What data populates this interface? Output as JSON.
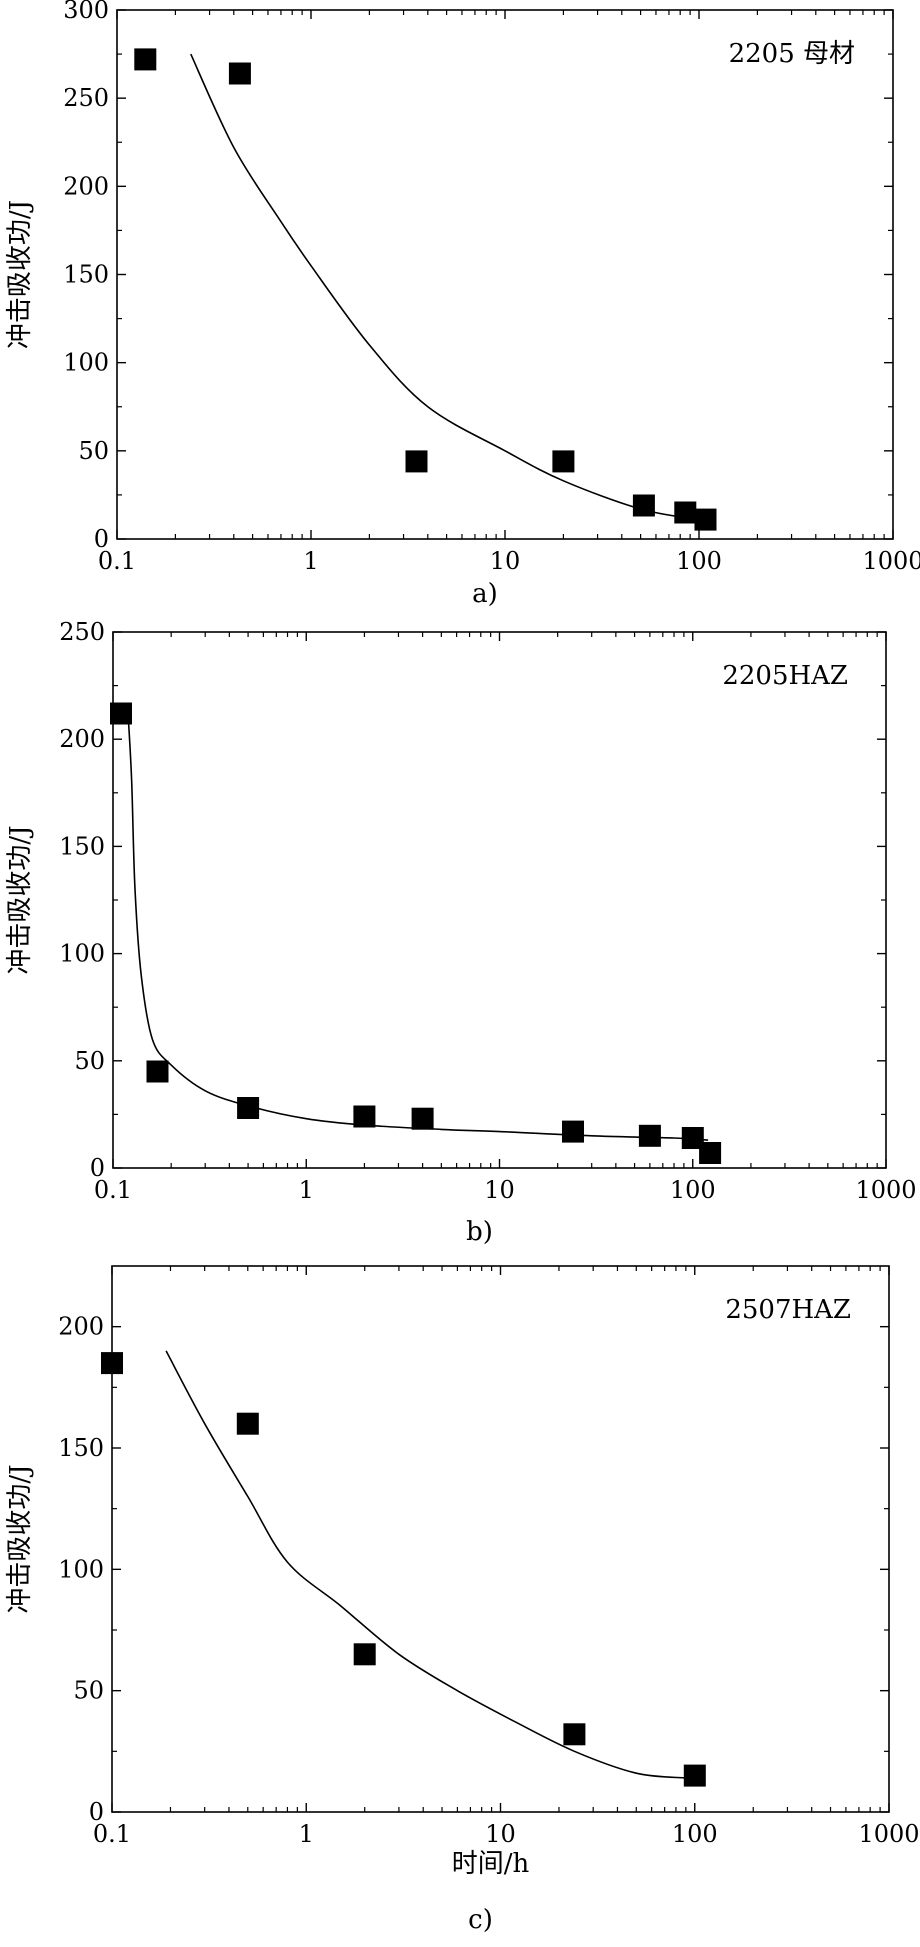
{
  "chart_data": [
    {
      "type": "scatter",
      "panel": "a)",
      "title": "",
      "annotation": "2205 母材",
      "xlabel": "",
      "ylabel": "冲击吸收功/J",
      "xscale": "log",
      "xlim": [
        0.1,
        1000
      ],
      "ylim": [
        0,
        300
      ],
      "xticks": [
        0.1,
        1,
        10,
        100,
        1000
      ],
      "xtick_labels": [
        "0.1",
        "1",
        "10",
        "100",
        "1000"
      ],
      "yticks": [
        0,
        50,
        100,
        150,
        200,
        250,
        300
      ],
      "ytick_labels": [
        "0",
        "50",
        "100",
        "150",
        "200",
        "250",
        "300"
      ],
      "grid": false,
      "series": [
        {
          "kind": "points",
          "marker": "filled-square",
          "x": [
            0.14,
            0.43,
            3.5,
            20,
            52,
            85,
            108
          ],
          "y": [
            272,
            264,
            44,
            44,
            19,
            15,
            11
          ]
        },
        {
          "kind": "fit-curve",
          "x": [
            0.24,
            0.4,
            0.7,
            1,
            2,
            4,
            10,
            20,
            50,
            100
          ],
          "y": [
            275,
            222,
            180,
            155,
            110,
            75,
            50,
            33,
            17,
            11
          ]
        }
      ]
    },
    {
      "type": "scatter",
      "panel": "b)",
      "title": "",
      "annotation": "2205HAZ",
      "xlabel": "",
      "ylabel": "冲击吸收功/J",
      "xscale": "log",
      "xlim": [
        0.1,
        1000
      ],
      "ylim": [
        0,
        250
      ],
      "xticks": [
        0.1,
        1,
        10,
        100,
        1000
      ],
      "xtick_labels": [
        "0.1",
        "1",
        "10",
        "100",
        "1000"
      ],
      "yticks": [
        0,
        50,
        100,
        150,
        200,
        250
      ],
      "ytick_labels": [
        "0",
        "50",
        "100",
        "150",
        "200",
        "250"
      ],
      "grid": false,
      "series": [
        {
          "kind": "points",
          "marker": "filled-square",
          "x": [
            0.11,
            0.17,
            0.5,
            2,
            4,
            24,
            60,
            100,
            123
          ],
          "y": [
            212,
            45,
            28,
            24,
            23,
            17,
            15,
            14,
            7
          ]
        },
        {
          "kind": "fit-curve",
          "x": [
            0.12,
            0.125,
            0.13,
            0.14,
            0.16,
            0.2,
            0.3,
            0.5,
            1,
            2,
            5,
            10,
            30,
            80,
            120
          ],
          "y": [
            210,
            180,
            130,
            90,
            60,
            48,
            36,
            29,
            23,
            20,
            18,
            17,
            15,
            14,
            13
          ]
        }
      ]
    },
    {
      "type": "scatter",
      "panel": "c)",
      "title": "",
      "annotation": "2507HAZ",
      "xlabel": "时间/h",
      "ylabel": "冲击吸收功/J",
      "xscale": "log",
      "xlim": [
        0.1,
        1000
      ],
      "ylim": [
        0,
        225
      ],
      "xticks": [
        0.1,
        1,
        10,
        100,
        1000
      ],
      "xtick_labels": [
        "0.1",
        "1",
        "10",
        "100",
        "1000"
      ],
      "yticks": [
        0,
        50,
        100,
        150,
        200
      ],
      "ytick_labels": [
        "0",
        "50",
        "100",
        "150",
        "200"
      ],
      "grid": false,
      "series": [
        {
          "kind": "points",
          "marker": "filled-square",
          "x": [
            0.1,
            0.5,
            2,
            24,
            100
          ],
          "y": [
            185,
            160,
            65,
            32,
            15
          ]
        },
        {
          "kind": "fit-curve",
          "x": [
            0.19,
            0.3,
            0.5,
            0.8,
            1.5,
            3,
            6,
            12,
            24,
            50,
            90
          ],
          "y": [
            190,
            160,
            130,
            103,
            85,
            65,
            50,
            37,
            25,
            16,
            14
          ]
        }
      ]
    }
  ]
}
